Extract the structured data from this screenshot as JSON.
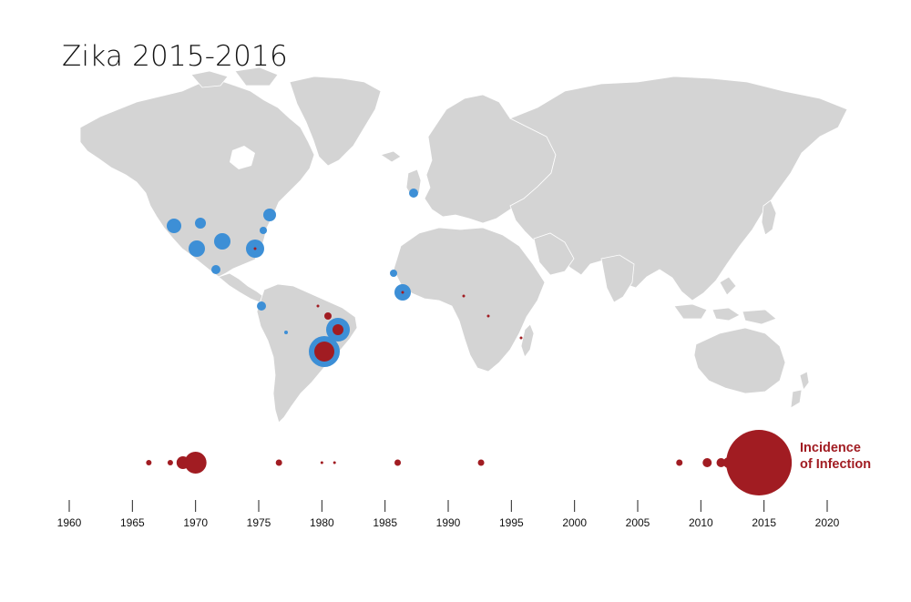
{
  "title": "Zika 2015-2016",
  "colors": {
    "land": "#d4d4d4",
    "borders": "#ffffff",
    "outbreak_secondary": "#3d8fd6",
    "outbreak_primary": "#a11c22",
    "text": "#111111"
  },
  "map": {
    "regions": [
      "North America",
      "Greenland",
      "South America",
      "Europe",
      "Africa",
      "Asia",
      "Australia",
      "Madagascar",
      "Japan",
      "Indonesia",
      "United Kingdom",
      "New Zealand"
    ],
    "outbreaks_blue": [
      {
        "region": "Pacific Northwest US",
        "size": 8
      },
      {
        "region": "Northern US plains",
        "size": 6
      },
      {
        "region": "Northeastern US",
        "size": 7
      },
      {
        "region": "Mid-Atlantic US",
        "size": 4
      },
      {
        "region": "Southwestern US",
        "size": 9
      },
      {
        "region": "Southern US",
        "size": 9
      },
      {
        "region": "Gulf Coast US",
        "size": 10
      },
      {
        "region": "Mexico",
        "size": 5
      },
      {
        "region": "Colombia",
        "size": 5
      },
      {
        "region": "Peru",
        "size": 2
      },
      {
        "region": "Northeastern Brazil",
        "size": 13
      },
      {
        "region": "Southeastern Brazil",
        "size": 17
      },
      {
        "region": "Western Europe",
        "size": 5
      },
      {
        "region": "West Africa north",
        "size": 4
      },
      {
        "region": "West Africa",
        "size": 9
      }
    ],
    "outbreaks_red": [
      {
        "region": "Northern Brazil",
        "size": 4
      },
      {
        "region": "Northeastern Brazil",
        "size": 6
      },
      {
        "region": "Southeastern Brazil",
        "size": 11
      },
      {
        "region": "Central Africa",
        "size": 1.5
      },
      {
        "region": "East Africa",
        "size": 1.5
      },
      {
        "region": "Madagascar",
        "size": 1.5
      },
      {
        "region": "West Africa",
        "size": 1.5
      }
    ]
  },
  "legend": {
    "line1": "Incidence",
    "line2": "of Infection"
  },
  "chart_data": {
    "type": "scatter",
    "title": "",
    "xlabel": "",
    "ylabel": "",
    "xlim": [
      1958,
      2023
    ],
    "x_ticks": [
      "1960",
      "1965",
      "1970",
      "1975",
      "1980",
      "1985",
      "1990",
      "1995",
      "2000",
      "2005",
      "2010",
      "2015",
      "2020"
    ],
    "series": [
      {
        "name": "Incidence of Infection",
        "points": [
          {
            "x": 1966.3,
            "size": 3
          },
          {
            "x": 1968.0,
            "size": 3
          },
          {
            "x": 1969.0,
            "size": 7
          },
          {
            "x": 1970.0,
            "size": 12
          },
          {
            "x": 1976.6,
            "size": 3.5
          },
          {
            "x": 1980.0,
            "size": 1.5
          },
          {
            "x": 1981.0,
            "size": 1.5
          },
          {
            "x": 1986.0,
            "size": 3.5
          },
          {
            "x": 1992.6,
            "size": 3.5
          },
          {
            "x": 2008.3,
            "size": 3.5
          },
          {
            "x": 2010.5,
            "size": 5
          },
          {
            "x": 2011.6,
            "size": 5
          },
          {
            "x": 2012.2,
            "size": 6
          },
          {
            "x": 2014.6,
            "size": 36
          }
        ]
      }
    ]
  }
}
